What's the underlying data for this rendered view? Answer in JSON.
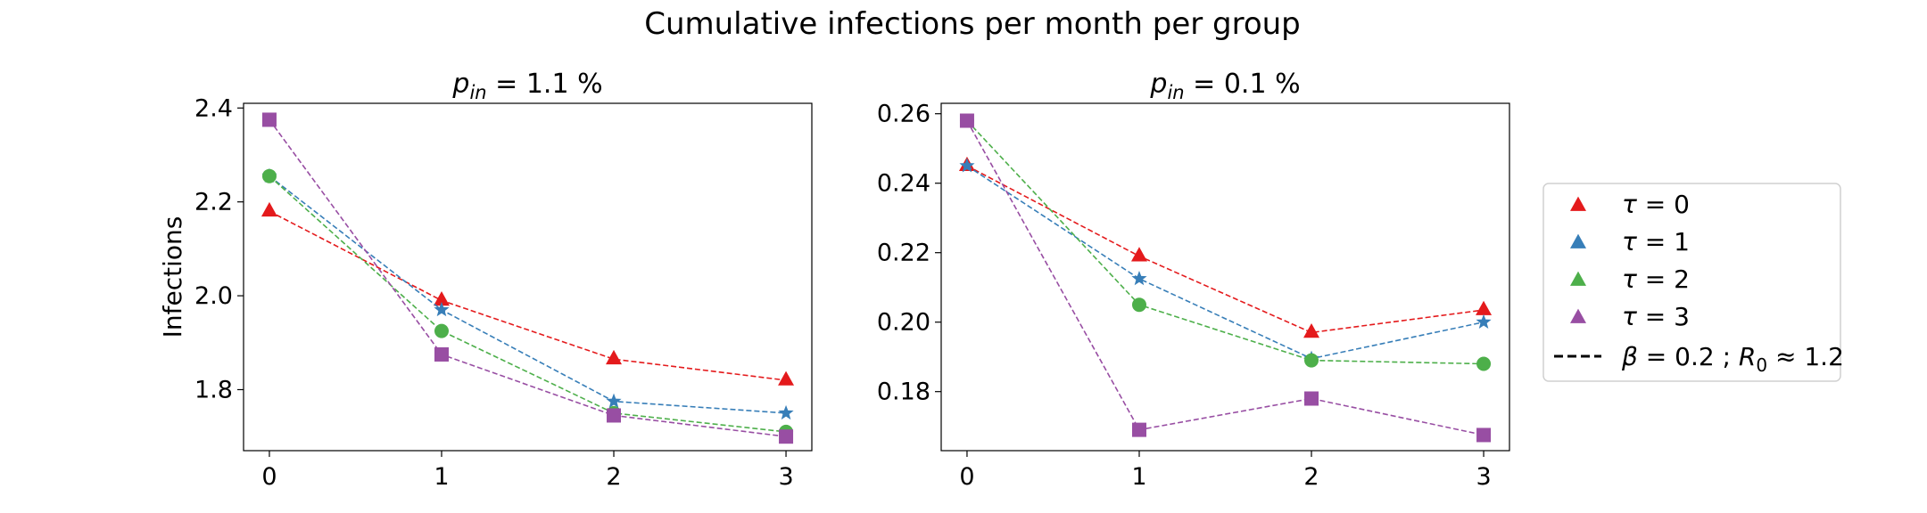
{
  "suptitle": "Cumulative infections per month per group",
  "chart_data": [
    {
      "type": "line",
      "title_var": "p",
      "title_sub": "in",
      "title_value": " = 1.1 %",
      "ylabel": "Infections",
      "xlabel": "",
      "x": [
        0,
        1,
        2,
        3
      ],
      "xlim": [
        -0.15,
        3.15
      ],
      "ylim": [
        1.67,
        2.41
      ],
      "yticks": [
        1.8,
        2.0,
        2.2,
        2.4
      ],
      "ytick_labels": [
        "1.8",
        "2.0",
        "2.2",
        "2.4"
      ],
      "xtick_labels": [
        "0",
        "1",
        "2",
        "3"
      ],
      "series": [
        {
          "name": "τ = 0",
          "marker": "triangle",
          "color": "#e41a1c",
          "values": [
            2.18,
            1.99,
            1.865,
            1.82
          ]
        },
        {
          "name": "τ = 1",
          "marker": "star",
          "color": "#377eb8",
          "values": [
            2.255,
            1.97,
            1.775,
            1.75
          ]
        },
        {
          "name": "τ = 2",
          "marker": "circle",
          "color": "#4daf4a",
          "values": [
            2.255,
            1.925,
            1.75,
            1.71
          ]
        },
        {
          "name": "τ = 3",
          "marker": "square",
          "color": "#984ea3",
          "values": [
            2.375,
            1.875,
            1.745,
            1.7
          ]
        }
      ]
    },
    {
      "type": "line",
      "title_var": "p",
      "title_sub": "in",
      "title_value": " = 0.1 %",
      "ylabel": "",
      "xlabel": "",
      "x": [
        0,
        1,
        2,
        3
      ],
      "xlim": [
        -0.15,
        3.15
      ],
      "ylim": [
        0.163,
        0.263
      ],
      "yticks": [
        0.18,
        0.2,
        0.22,
        0.24,
        0.26
      ],
      "ytick_labels": [
        "0.18",
        "0.20",
        "0.22",
        "0.24",
        "0.26"
      ],
      "xtick_labels": [
        "0",
        "1",
        "2",
        "3"
      ],
      "series": [
        {
          "name": "τ = 0",
          "marker": "triangle",
          "color": "#e41a1c",
          "values": [
            0.245,
            0.219,
            0.197,
            0.2035
          ]
        },
        {
          "name": "τ = 1",
          "marker": "star",
          "color": "#377eb8",
          "values": [
            0.245,
            0.2125,
            0.1895,
            0.2
          ]
        },
        {
          "name": "τ = 2",
          "marker": "circle",
          "color": "#4daf4a",
          "values": [
            0.258,
            0.205,
            0.189,
            0.188
          ]
        },
        {
          "name": "τ = 3",
          "marker": "square",
          "color": "#984ea3",
          "values": [
            0.258,
            0.169,
            0.178,
            0.1675
          ]
        }
      ]
    }
  ],
  "legend": {
    "placement": "right",
    "entries": [
      {
        "var": "τ",
        "text": " = 0",
        "color": "#e41a1c",
        "marker": "triangle"
      },
      {
        "var": "τ",
        "text": " = 1",
        "color": "#377eb8",
        "marker": "triangle"
      },
      {
        "var": "τ",
        "text": " = 2",
        "color": "#4daf4a",
        "marker": "triangle"
      },
      {
        "var": "τ",
        "text": " = 3",
        "color": "#984ea3",
        "marker": "triangle"
      }
    ],
    "line_entry": {
      "beta_var": "β",
      "beta_text": " = 0.2 ; ",
      "r_var": "R",
      "r_sub": "0",
      "r_text": " ≈ 1.2",
      "style": "dashed",
      "color": "#000000"
    }
  }
}
